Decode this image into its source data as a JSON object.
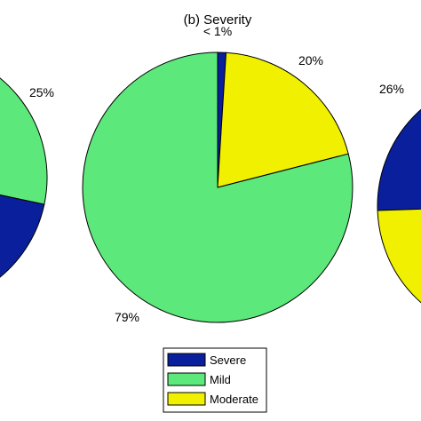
{
  "chart_data": {
    "type": "pie",
    "title": "(b) Severity",
    "colors": {
      "Severe": "#0a1f9c",
      "Mild": "#5ce87a",
      "Moderate": "#f0f000"
    },
    "legend": {
      "placement": "bottom-center",
      "entries": [
        "Severe",
        "Mild",
        "Moderate"
      ]
    },
    "pies": [
      {
        "visibility": "partial-left",
        "slices": [
          {
            "name": "Mild",
            "label": "25%"
          },
          {
            "name": "Severe",
            "label": ""
          }
        ]
      },
      {
        "visibility": "full",
        "slices": [
          {
            "name": "Severe",
            "value": 1,
            "label": "< 1%"
          },
          {
            "name": "Moderate",
            "value": 20,
            "label": "20%"
          },
          {
            "name": "Mild",
            "value": 79,
            "label": "79%"
          }
        ]
      },
      {
        "visibility": "partial-right",
        "slices": [
          {
            "name": "Severe",
            "label": "26%"
          },
          {
            "name": "Moderate",
            "label": ""
          }
        ]
      }
    ]
  }
}
